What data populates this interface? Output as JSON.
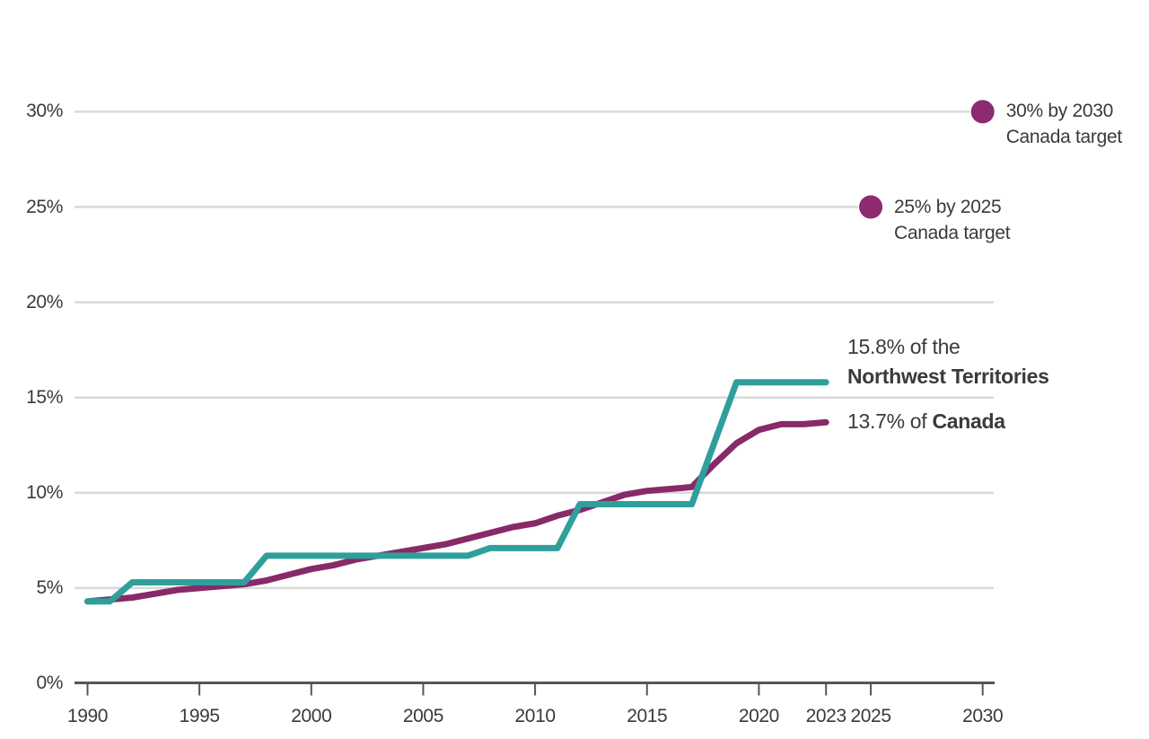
{
  "chart_data": {
    "type": "line",
    "x": [
      1990,
      1991,
      1992,
      1993,
      1994,
      1995,
      1996,
      1997,
      1998,
      1999,
      2000,
      2001,
      2002,
      2003,
      2004,
      2005,
      2006,
      2007,
      2008,
      2009,
      2010,
      2011,
      2012,
      2013,
      2014,
      2015,
      2016,
      2017,
      2018,
      2019,
      2020,
      2021,
      2022,
      2023
    ],
    "series": [
      {
        "name": "Northwest Territories",
        "label": "15.8% of the",
        "label_bold": "Northwest Territories",
        "end_value": 15.8,
        "color": "#2f9f9c",
        "values": [
          4.3,
          4.3,
          5.3,
          5.3,
          5.3,
          5.3,
          5.3,
          5.3,
          6.7,
          6.7,
          6.7,
          6.7,
          6.7,
          6.7,
          6.7,
          6.7,
          6.7,
          6.7,
          7.1,
          7.1,
          7.1,
          7.1,
          9.4,
          9.4,
          9.4,
          9.4,
          9.4,
          9.4,
          12.6,
          15.8,
          15.8,
          15.8,
          15.8,
          15.8
        ]
      },
      {
        "name": "Canada",
        "label": "13.7% of ",
        "label_bold": "Canada",
        "end_value": 13.7,
        "color": "#872a68",
        "values": [
          4.3,
          4.4,
          4.5,
          4.7,
          4.9,
          5.0,
          5.1,
          5.2,
          5.4,
          5.7,
          6.0,
          6.2,
          6.5,
          6.7,
          6.9,
          7.1,
          7.3,
          7.6,
          7.9,
          8.2,
          8.4,
          8.8,
          9.1,
          9.5,
          9.9,
          10.1,
          10.2,
          10.3,
          11.5,
          12.6,
          13.3,
          13.6,
          13.6,
          13.7
        ]
      }
    ],
    "targets": [
      {
        "line1": "25% by 2025",
        "line2": "Canada target",
        "value": 25,
        "year": 2025,
        "color": "#8d2a70"
      },
      {
        "line1": "30% by 2030",
        "line2": "Canada target",
        "value": 30,
        "year": 2030,
        "color": "#8d2a70"
      }
    ],
    "yticks": [
      0,
      5,
      10,
      15,
      20,
      25,
      30
    ],
    "yticklabels": [
      "0%",
      "5%",
      "10%",
      "15%",
      "20%",
      "25%",
      "30%"
    ],
    "xticklabels": [
      "1990",
      "1995",
      "2000",
      "2005",
      "2010",
      "2015",
      "2020",
      "2023",
      "2025",
      "2030"
    ],
    "xlim": [
      1990,
      2030
    ],
    "ylim": [
      0,
      32
    ],
    "grid": "horizontal",
    "grid_color": "#d9d9d9",
    "axis_color": "#55565a",
    "text_color": "#3a3a3a",
    "legend_position": "labels at line ends"
  }
}
